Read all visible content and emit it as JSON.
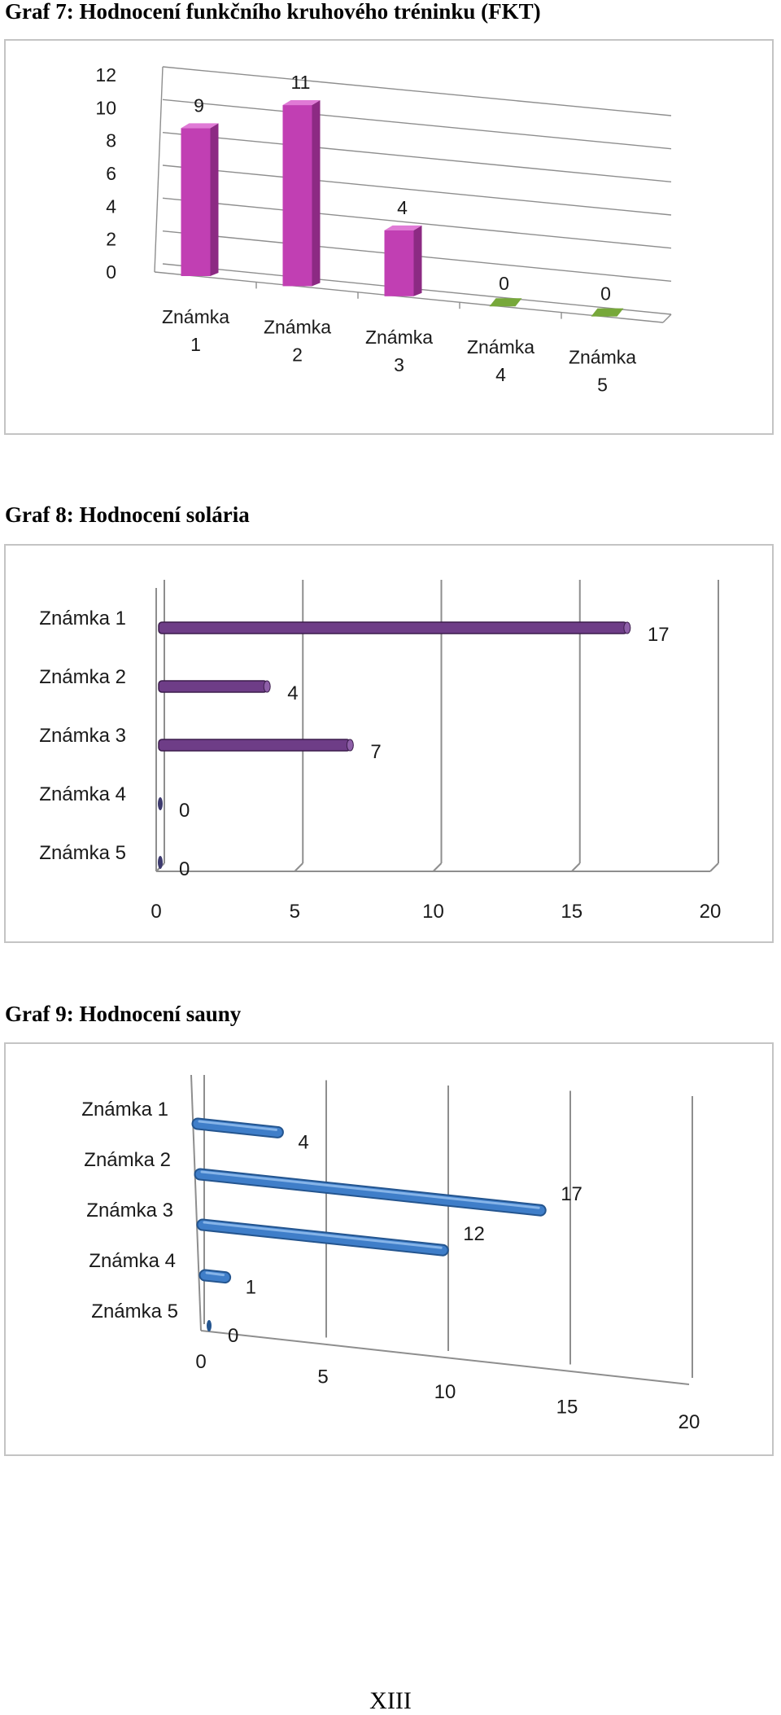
{
  "page": {
    "page_number": "XIII"
  },
  "chart_data": [
    {
      "type": "bar",
      "title": "Graf 7: Hodnocení funkčního kruhového tréninku (FKT)",
      "categories": [
        "Známka 1",
        "Známka 2",
        "Známka 3",
        "Známka 4",
        "Známka 5"
      ],
      "values": [
        9,
        11,
        4,
        0,
        0
      ],
      "ylim": [
        0,
        12
      ],
      "yticks": [
        "0",
        "2",
        "4",
        "6",
        "8",
        "10",
        "12"
      ],
      "grid": true,
      "legend": "none",
      "style": "3d-column",
      "colors": {
        "bar": "#c13fb3",
        "zero_bar": "#77a83a"
      }
    },
    {
      "type": "bar",
      "orientation": "horizontal",
      "title": "Graf 8: Hodnocení solária",
      "categories": [
        "Známka 1",
        "Známka 2",
        "Známka 3",
        "Známka 4",
        "Známka 5"
      ],
      "values": [
        17,
        4,
        7,
        0,
        0
      ],
      "xlim": [
        0,
        20
      ],
      "xticks": [
        "0",
        "5",
        "10",
        "15",
        "20"
      ],
      "grid": true,
      "legend": "none",
      "style": "3d-cylinder",
      "colors": {
        "bar": "#6e3d87"
      }
    },
    {
      "type": "bar",
      "orientation": "horizontal",
      "title": "Graf 9: Hodnocení sauny",
      "categories": [
        "Známka 1",
        "Známka 2",
        "Známka 3",
        "Známka 4",
        "Známka 5"
      ],
      "values": [
        4,
        17,
        12,
        1,
        0
      ],
      "xlim": [
        0,
        20
      ],
      "xticks": [
        "0",
        "5",
        "10",
        "15",
        "20"
      ],
      "grid": true,
      "legend": "none",
      "style": "3d-cylinder-perspective",
      "colors": {
        "bar": "#3f7ec9"
      }
    }
  ]
}
